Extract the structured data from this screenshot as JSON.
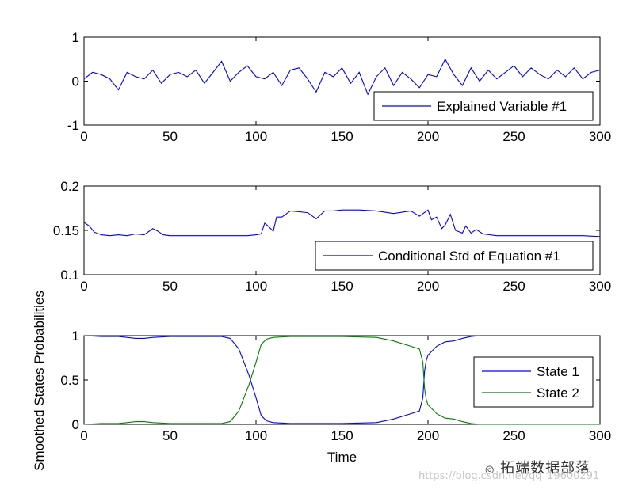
{
  "chart_data": [
    {
      "type": "line",
      "xlim": [
        0,
        300
      ],
      "ylim": [
        -1,
        1
      ],
      "xticks": [
        "0",
        "50",
        "100",
        "150",
        "200",
        "250",
        "300"
      ],
      "yticks": [
        "-1",
        "0",
        "1"
      ],
      "xlabel": "",
      "ylabel": "",
      "legend": "bottom-right",
      "series": [
        {
          "name": "Explained Variable #1",
          "color": "#0000ff",
          "x": [
            0,
            5,
            10,
            15,
            20,
            25,
            30,
            35,
            40,
            45,
            50,
            55,
            60,
            65,
            70,
            75,
            80,
            85,
            90,
            95,
            100,
            105,
            110,
            115,
            120,
            125,
            130,
            135,
            140,
            145,
            150,
            155,
            160,
            165,
            170,
            175,
            180,
            185,
            190,
            195,
            200,
            205,
            210,
            215,
            220,
            225,
            230,
            235,
            240,
            245,
            250,
            255,
            260,
            265,
            270,
            275,
            280,
            285,
            290,
            295,
            300
          ],
          "y": [
            0.05,
            0.2,
            0.15,
            0.05,
            -0.2,
            0.2,
            0.1,
            0.05,
            0.25,
            -0.05,
            0.15,
            0.2,
            0.1,
            0.25,
            -0.05,
            0.2,
            0.45,
            0.0,
            0.2,
            0.35,
            0.1,
            0.05,
            0.2,
            -0.1,
            0.25,
            0.3,
            0.05,
            -0.25,
            0.2,
            0.1,
            0.3,
            -0.05,
            0.2,
            -0.3,
            0.1,
            0.3,
            -0.1,
            0.2,
            0.05,
            -0.15,
            0.15,
            0.1,
            0.5,
            0.15,
            -0.1,
            0.3,
            0.0,
            0.25,
            0.05,
            0.2,
            0.35,
            0.1,
            0.3,
            0.15,
            0.05,
            0.25,
            0.1,
            0.3,
            0.05,
            0.2,
            0.25
          ]
        }
      ]
    },
    {
      "type": "line",
      "xlim": [
        0,
        300
      ],
      "ylim": [
        0.1,
        0.2
      ],
      "xticks": [
        "0",
        "50",
        "100",
        "150",
        "200",
        "250",
        "300"
      ],
      "yticks": [
        "0.1",
        "0.15",
        "0.2"
      ],
      "xlabel": "",
      "ylabel": "",
      "legend": "bottom-right",
      "series": [
        {
          "name": "Conditional Std of Equation #1",
          "color": "#0000ff",
          "x": [
            0,
            3,
            6,
            10,
            15,
            20,
            25,
            30,
            35,
            40,
            43,
            46,
            50,
            55,
            60,
            70,
            80,
            90,
            95,
            100,
            103,
            105,
            107,
            110,
            112,
            115,
            120,
            125,
            130,
            135,
            140,
            145,
            150,
            160,
            170,
            180,
            190,
            195,
            200,
            202,
            205,
            208,
            210,
            213,
            216,
            220,
            222,
            225,
            228,
            232,
            240,
            250,
            260,
            270,
            280,
            290,
            300
          ],
          "y": [
            0.159,
            0.155,
            0.148,
            0.145,
            0.144,
            0.145,
            0.144,
            0.146,
            0.145,
            0.152,
            0.149,
            0.145,
            0.144,
            0.144,
            0.144,
            0.144,
            0.144,
            0.144,
            0.144,
            0.145,
            0.146,
            0.158,
            0.155,
            0.149,
            0.165,
            0.165,
            0.172,
            0.171,
            0.17,
            0.163,
            0.172,
            0.172,
            0.173,
            0.173,
            0.172,
            0.169,
            0.172,
            0.166,
            0.173,
            0.162,
            0.165,
            0.152,
            0.156,
            0.168,
            0.15,
            0.147,
            0.155,
            0.147,
            0.151,
            0.146,
            0.144,
            0.144,
            0.144,
            0.144,
            0.144,
            0.144,
            0.143
          ]
        }
      ]
    },
    {
      "type": "line",
      "xlim": [
        0,
        300
      ],
      "ylim": [
        0,
        1
      ],
      "xticks": [
        "0",
        "50",
        "100",
        "150",
        "200",
        "250",
        "300"
      ],
      "yticks": [
        "0",
        "0.5",
        "1"
      ],
      "xlabel": "Time",
      "ylabel": "",
      "legend": "top-right",
      "series": [
        {
          "name": "State 1",
          "color": "#0000ff",
          "x": [
            0,
            10,
            20,
            25,
            30,
            35,
            40,
            50,
            60,
            70,
            80,
            85,
            90,
            93,
            96,
            100,
            103,
            106,
            110,
            120,
            130,
            150,
            170,
            180,
            190,
            195,
            197,
            198,
            199,
            200,
            202,
            205,
            210,
            215,
            220,
            225,
            230
          ],
          "y": [
            1.0,
            0.99,
            0.99,
            0.98,
            0.97,
            0.97,
            0.98,
            0.99,
            0.99,
            0.99,
            0.99,
            0.97,
            0.85,
            0.7,
            0.55,
            0.3,
            0.1,
            0.04,
            0.02,
            0.01,
            0.01,
            0.01,
            0.02,
            0.06,
            0.12,
            0.15,
            0.3,
            0.6,
            0.72,
            0.78,
            0.82,
            0.88,
            0.93,
            0.94,
            0.97,
            0.99,
            1.0
          ]
        },
        {
          "name": "State 2",
          "color": "#008000",
          "x": [
            0,
            10,
            20,
            25,
            30,
            35,
            40,
            50,
            60,
            70,
            80,
            85,
            90,
            93,
            96,
            100,
            103,
            106,
            110,
            120,
            130,
            150,
            170,
            180,
            190,
            195,
            197,
            198,
            199,
            200,
            202,
            205,
            210,
            215,
            220,
            225,
            230,
            250,
            270,
            300
          ],
          "y": [
            0.0,
            0.01,
            0.01,
            0.02,
            0.03,
            0.03,
            0.02,
            0.01,
            0.01,
            0.01,
            0.01,
            0.03,
            0.15,
            0.3,
            0.45,
            0.7,
            0.9,
            0.96,
            0.98,
            0.99,
            0.99,
            0.99,
            0.98,
            0.94,
            0.88,
            0.85,
            0.7,
            0.4,
            0.28,
            0.22,
            0.18,
            0.12,
            0.07,
            0.06,
            0.03,
            0.01,
            0.0,
            0.0,
            0.0,
            0.0
          ]
        }
      ]
    }
  ],
  "shared_ylabel": "Smoothed States Probabilities",
  "watermark": {
    "brand": "拓端数据部落",
    "url": "https://blog.csdn.net/qq_19600291"
  }
}
